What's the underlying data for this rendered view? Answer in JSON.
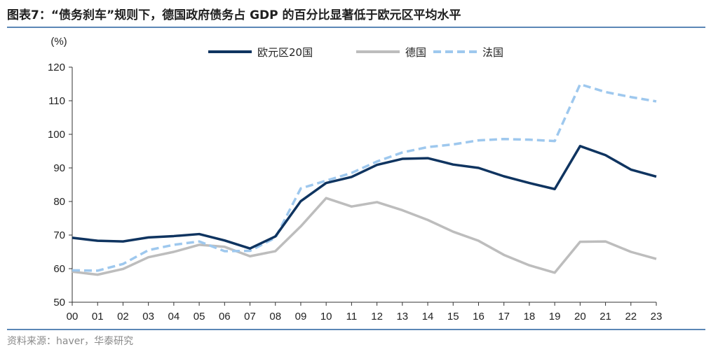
{
  "header": {
    "title": "图表7：“债务刹车”规则下，德国政府债务占 GDP 的百分比显著低于欧元区平均水平"
  },
  "footer": {
    "source": "资料来源：haver，华泰研究"
  },
  "chart_data": {
    "type": "line",
    "title": "图表7：“债务刹车”规则下，德国政府债务占 GDP 的百分比显著低于欧元区平均水平",
    "ylabel": "(%)",
    "xlabel": "",
    "ylim": [
      50,
      120
    ],
    "yticks": [
      50,
      60,
      70,
      80,
      90,
      100,
      110,
      120
    ],
    "categories": [
      "00",
      "01",
      "02",
      "03",
      "04",
      "05",
      "06",
      "07",
      "08",
      "09",
      "10",
      "11",
      "12",
      "13",
      "14",
      "15",
      "16",
      "17",
      "18",
      "19",
      "20",
      "21",
      "22",
      "23"
    ],
    "grid": false,
    "legend_position": "top",
    "series": [
      {
        "name": "欧元区20国",
        "color": "#0f3460",
        "style": "solid",
        "values": [
          69.2,
          68.3,
          68.1,
          69.3,
          69.7,
          70.3,
          68.4,
          66.0,
          69.6,
          80.1,
          85.5,
          87.3,
          90.9,
          92.7,
          92.9,
          91.0,
          90.0,
          87.5,
          85.5,
          83.7,
          96.5,
          93.8,
          89.5,
          87.4
        ]
      },
      {
        "name": "德国",
        "color": "#bdbdbd",
        "style": "solid",
        "values": [
          59.1,
          58.2,
          59.9,
          63.4,
          65.0,
          67.1,
          66.5,
          63.7,
          65.2,
          72.6,
          81.0,
          78.5,
          79.8,
          77.4,
          74.5,
          71.0,
          68.3,
          64.1,
          61.0,
          58.8,
          68.0,
          68.1,
          65.0,
          62.9
        ]
      },
      {
        "name": "法国",
        "color": "#9ec8ee",
        "style": "dashed",
        "values": [
          59.5,
          59.4,
          61.4,
          65.5,
          67.1,
          68.1,
          65.2,
          65.3,
          69.2,
          83.9,
          86.2,
          88.5,
          91.9,
          94.6,
          96.2,
          97.0,
          98.2,
          98.6,
          98.4,
          98.0,
          114.9,
          112.6,
          111.1,
          109.8
        ]
      }
    ]
  }
}
